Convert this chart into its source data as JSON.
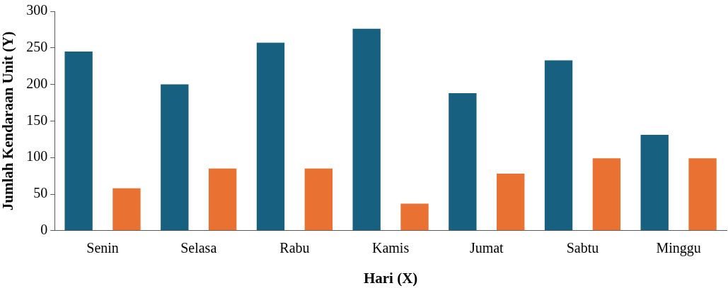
{
  "chart_data": {
    "type": "bar",
    "xlabel": "Hari (X)",
    "ylabel": "Jumlah Kendaraan Unit (Y)",
    "categories": [
      "Senin",
      "Selasa",
      "Rabu",
      "Kamis",
      "Jumat",
      "Sabtu",
      "Minggu"
    ],
    "series": [
      {
        "color": "#17607f",
        "values": [
          245,
          200,
          257,
          276,
          188,
          233,
          131
        ]
      },
      {
        "color": "#e97132",
        "values": [
          58,
          85,
          85,
          37,
          78,
          99,
          99
        ]
      }
    ],
    "ylim": [
      0,
      300
    ],
    "yticks": [
      0,
      50,
      100,
      150,
      200,
      250,
      300
    ],
    "grid": false,
    "legend": false
  }
}
